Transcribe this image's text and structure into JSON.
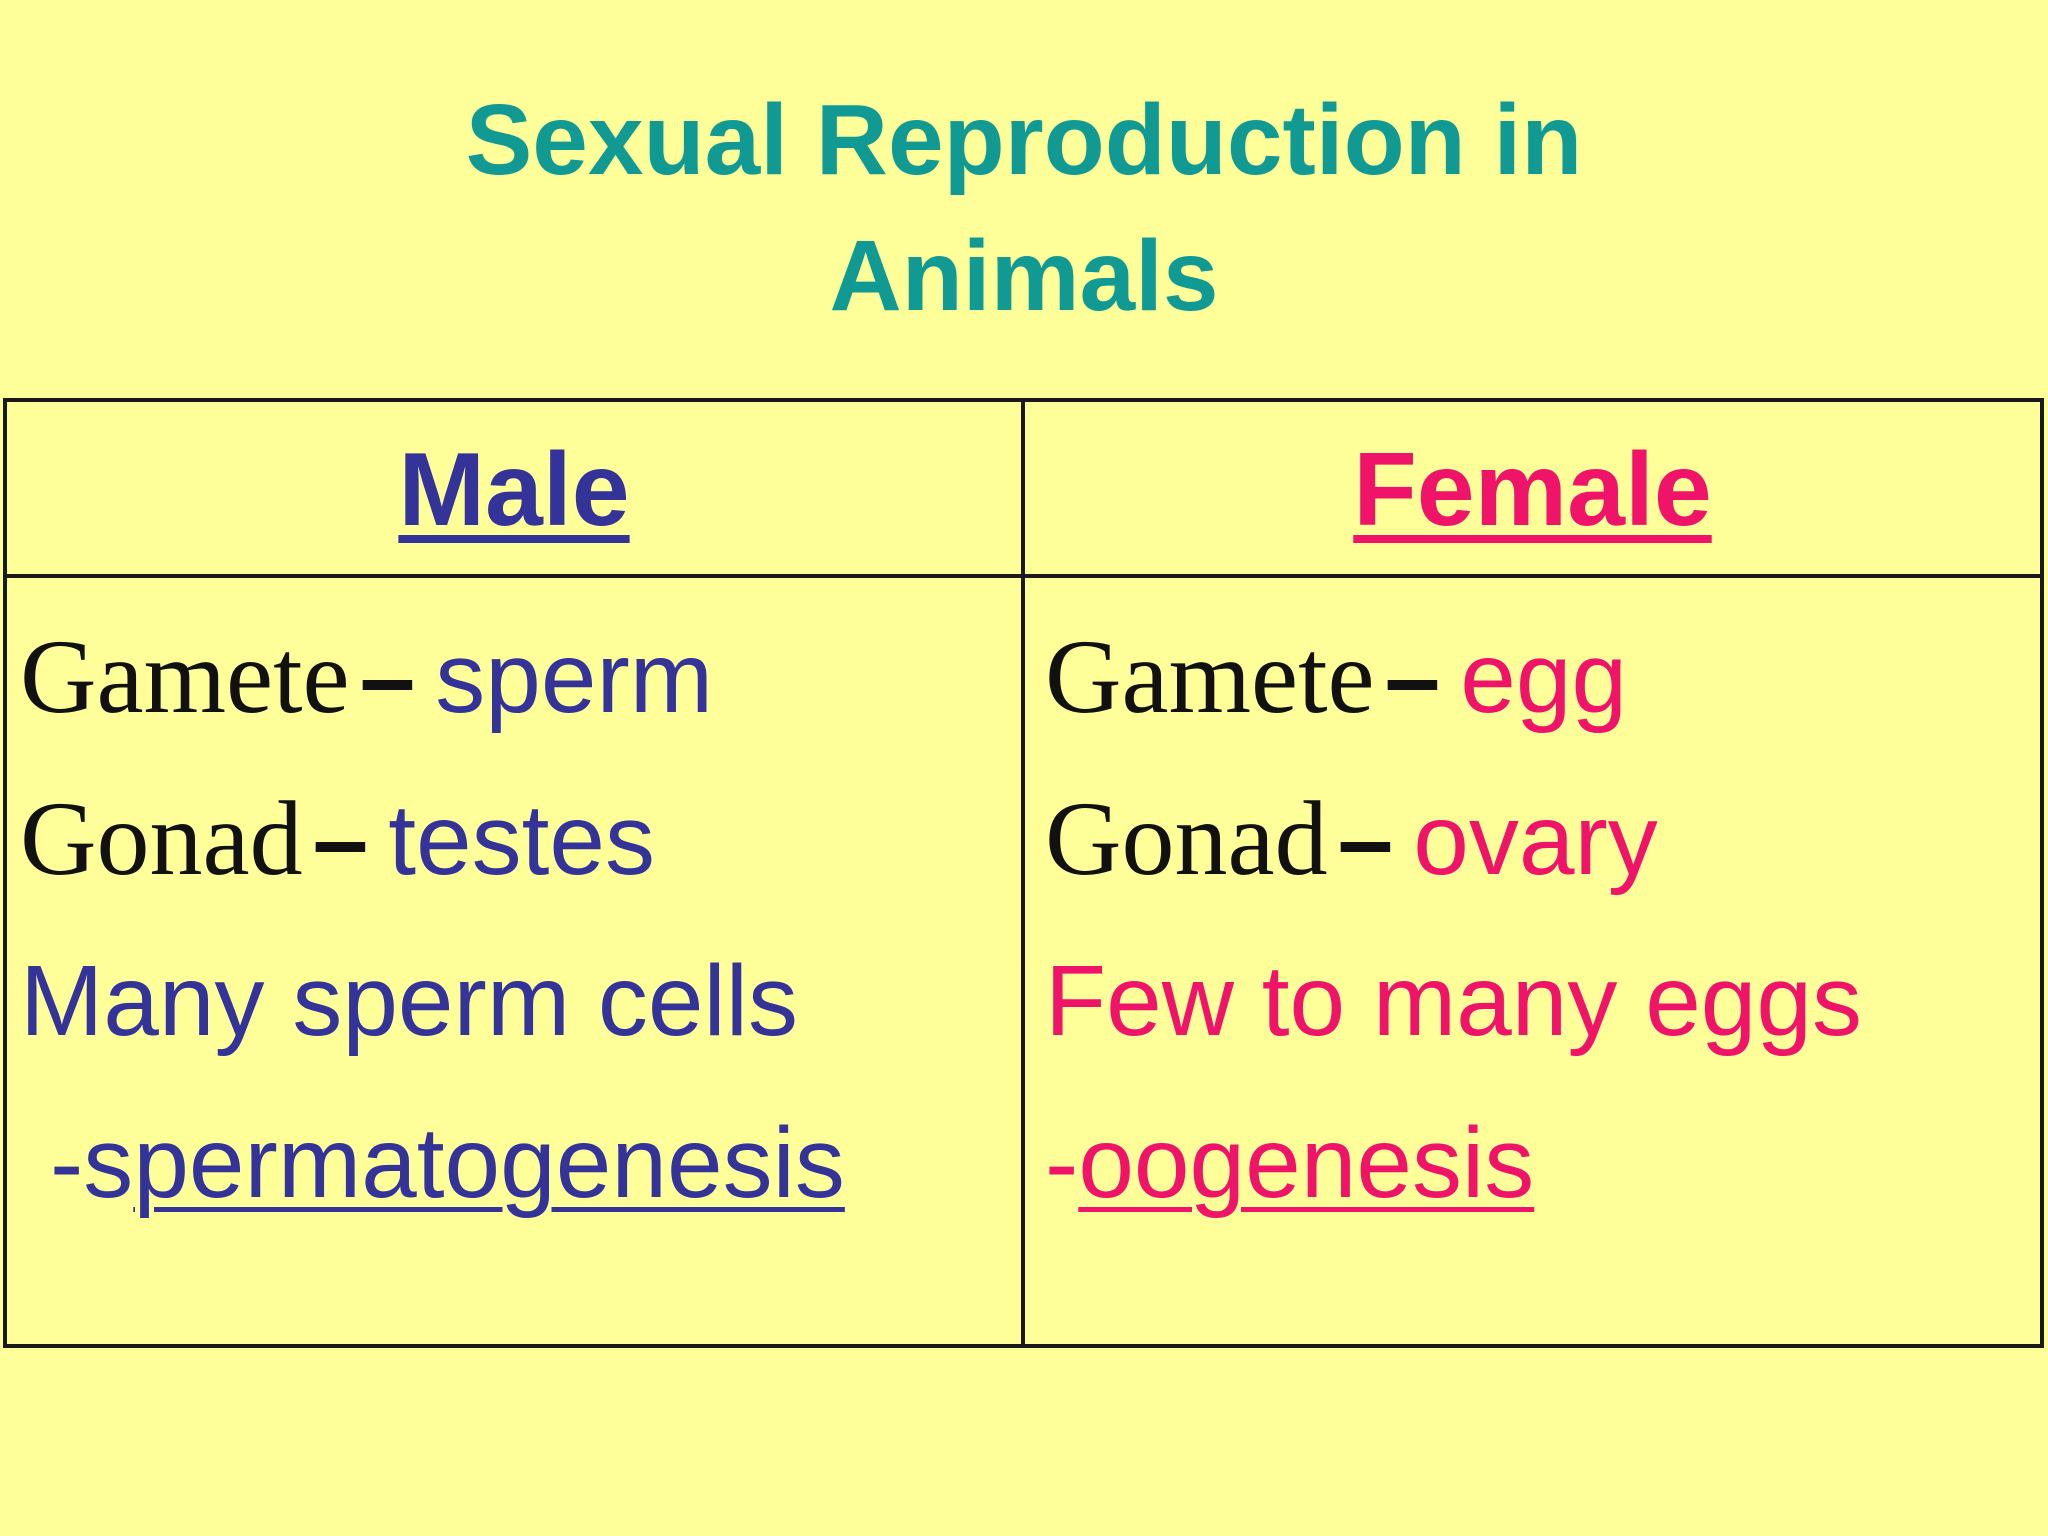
{
  "title": {
    "line1": "Sexual Reproduction in",
    "line2": "Animals"
  },
  "colors": {
    "background": "#ffff99",
    "title": "#119a94",
    "male": "#333399",
    "female": "#f0136a",
    "text": "#111111"
  },
  "table": {
    "male": {
      "header": "Male",
      "gamete_label": "Gamete",
      "gamete_dash": "–",
      "gamete_value": "sperm",
      "gonad_label": "Gonad",
      "gonad_dash": "–",
      "gonad_value": "testes",
      "count": "Many sperm cells",
      "process_prefix": "-s",
      "process_underlined": "permatogenesis"
    },
    "female": {
      "header": "Female",
      "gamete_label": "Gamete",
      "gamete_dash": "–",
      "gamete_value": "egg",
      "gonad_label": "Gonad",
      "gonad_dash": "–",
      "gonad_value": "ovary",
      "count": "Few to many eggs",
      "process_prefix": "-",
      "process_underlined": "oogenesis"
    }
  }
}
